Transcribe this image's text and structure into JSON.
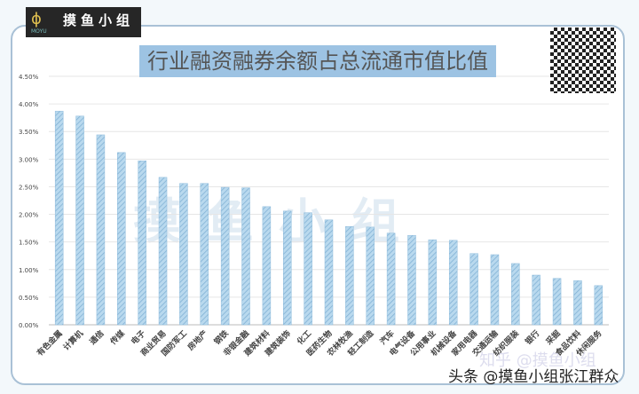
{
  "logo": {
    "text": "摸鱼小组",
    "sub": "MOYU"
  },
  "watermarks": {
    "center": "摸鱼小组",
    "zhihu": "知乎 @摸鱼小组",
    "toutiao": "头条 @摸鱼小组张江群众"
  },
  "chart_data": {
    "type": "bar",
    "title": "行业融资融券余额占总流通市值比值",
    "categories": [
      "有色金属",
      "计算机",
      "通信",
      "传媒",
      "电子",
      "商业贸易",
      "国防军工",
      "房地产",
      "钢铁",
      "非银金融",
      "建筑材料",
      "建筑装饰",
      "化工",
      "医药生物",
      "农林牧渔",
      "轻工制造",
      "汽车",
      "电气设备",
      "公用事业",
      "机械设备",
      "家用电器",
      "交通运输",
      "纺织服装",
      "银行",
      "采掘",
      "食品饮料",
      "休闲服务"
    ],
    "values": [
      3.87,
      3.78,
      3.44,
      3.12,
      2.97,
      2.67,
      2.56,
      2.56,
      2.49,
      2.48,
      2.14,
      2.06,
      2.03,
      1.9,
      1.78,
      1.77,
      1.66,
      1.62,
      1.54,
      1.53,
      1.29,
      1.27,
      1.11,
      0.9,
      0.84,
      0.8,
      0.71
    ],
    "unit": "%",
    "ylim": [
      0,
      4.5
    ],
    "yticks": [
      "0.00%",
      "0.50%",
      "1.00%",
      "1.50%",
      "2.00%",
      "2.50%",
      "3.00%",
      "3.50%",
      "4.00%",
      "4.50%"
    ],
    "grid": true,
    "bar_color": "#a9cde6",
    "bar_pattern": "hatched"
  }
}
